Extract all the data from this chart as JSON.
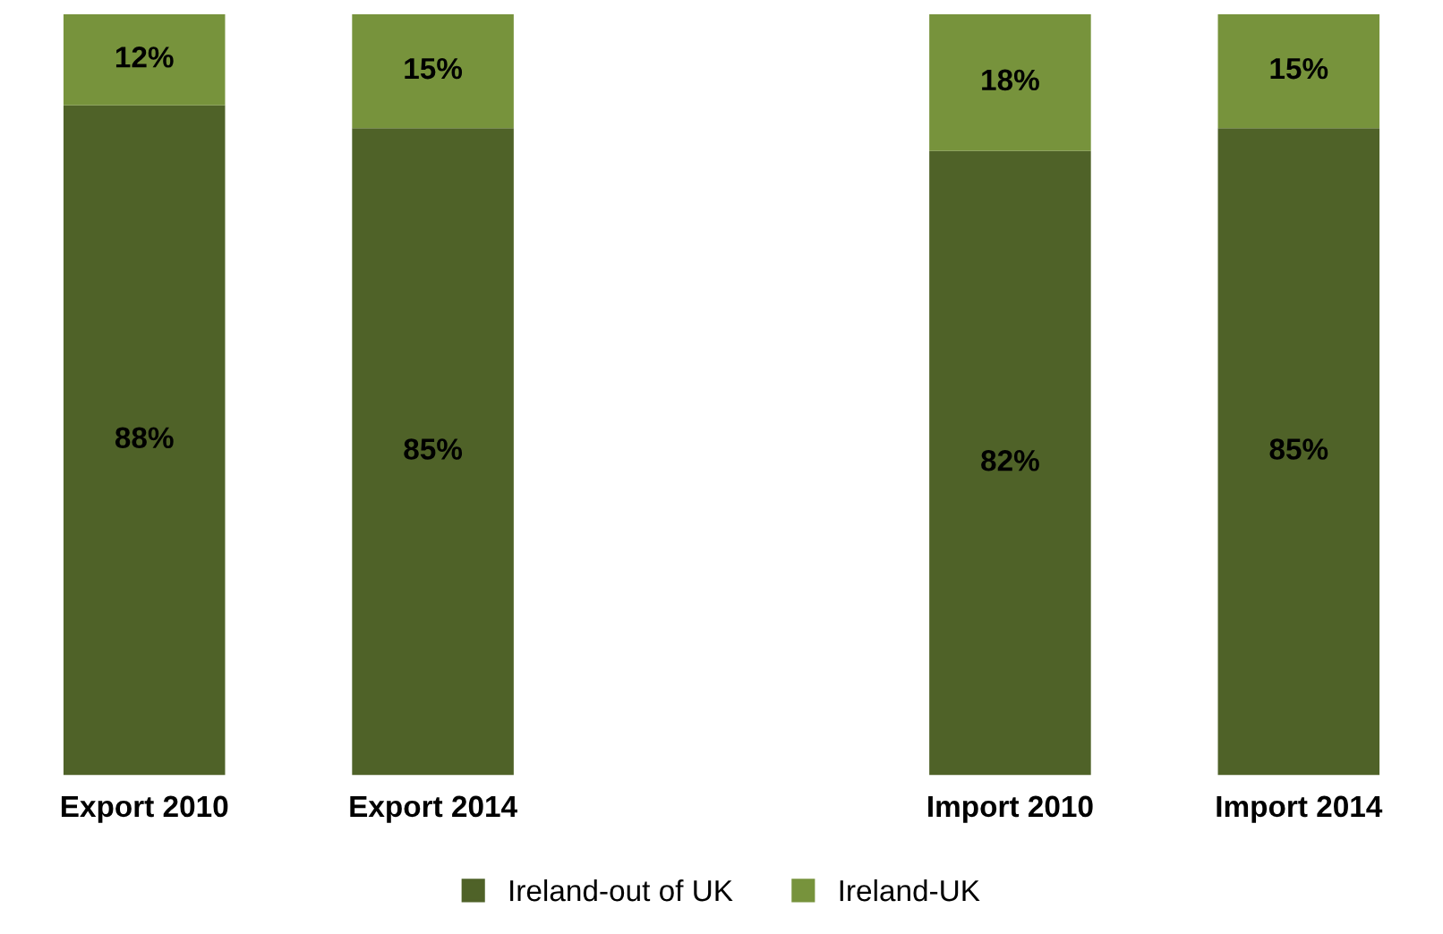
{
  "chart_data": {
    "type": "bar",
    "stacked": true,
    "categories": [
      "Export 2010",
      "Export 2014",
      null,
      "Import 2010",
      "Import 2014"
    ],
    "series": [
      {
        "name": "Ireland-out of UK",
        "color": "#4f6228",
        "values": [
          88,
          85,
          null,
          82,
          85
        ],
        "value_labels": [
          "88%",
          "85%",
          null,
          "82%",
          "85%"
        ]
      },
      {
        "name": "Ireland-UK",
        "color": "#77933c",
        "values": [
          12,
          15,
          null,
          18,
          15
        ],
        "value_labels": [
          "12%",
          "15%",
          null,
          "18%",
          "15%"
        ]
      }
    ],
    "ylim": [
      0,
      100
    ],
    "tick_labels": "x",
    "grid": false,
    "legend": "bottom"
  }
}
